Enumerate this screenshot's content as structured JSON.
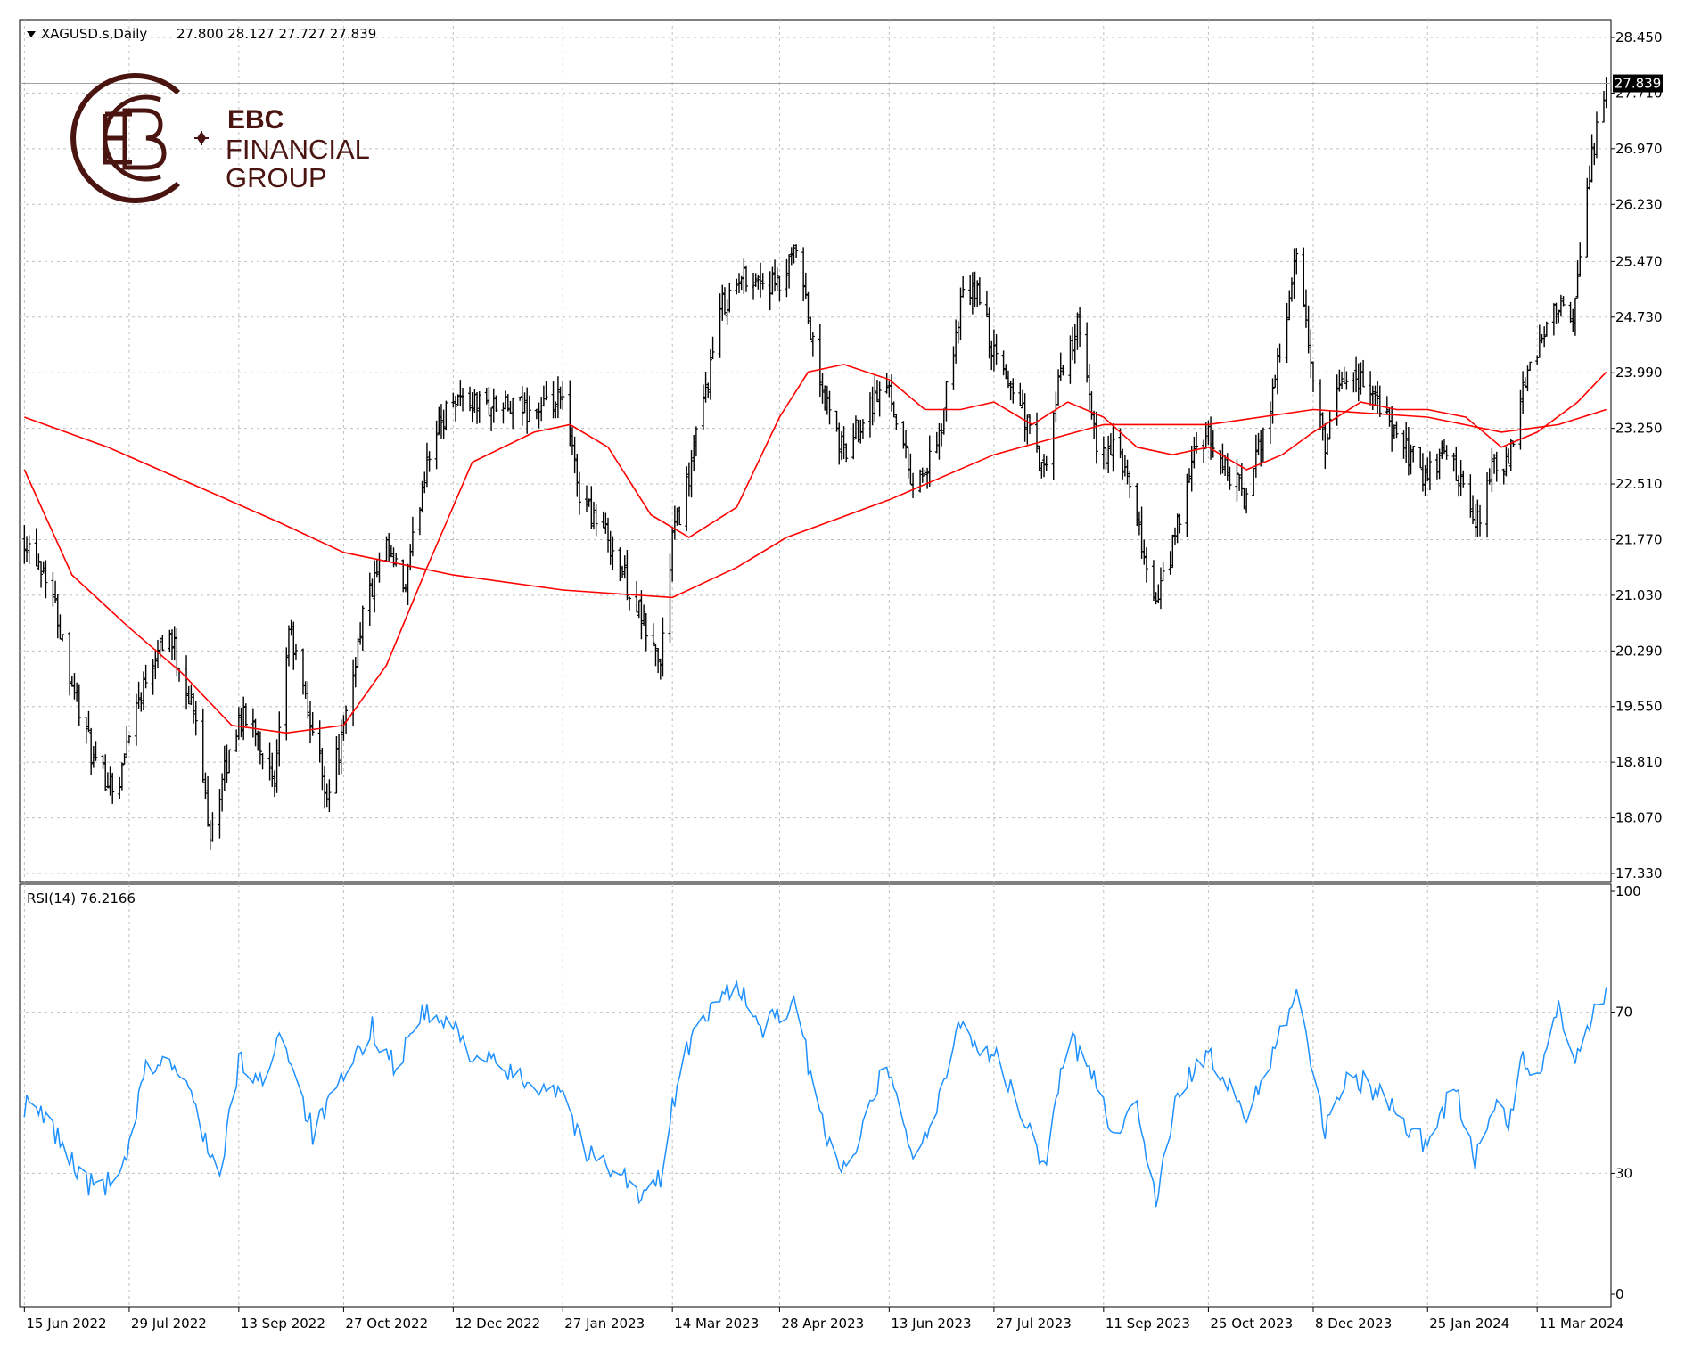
{
  "header": {
    "symbol_label": "XAGUSD.s,Daily",
    "ohlc": "27.800 28.127 27.727 27.839"
  },
  "logo": {
    "line1": "EBC",
    "line2": "FINANCIAL",
    "line3": "GROUP"
  },
  "rsi": {
    "label": "RSI(14) 76.2166"
  },
  "colors": {
    "price_bars": "#000000",
    "moving_averages": "#ff0000",
    "rsi_line": "#1e90ff",
    "grid": "#c0c0c0",
    "logo": "#4a1410",
    "background": "#ffffff"
  },
  "chart_data": [
    {
      "type": "ohlc",
      "symbol": "XAGUSD.s",
      "timeframe": "Daily",
      "last_price": 27.839,
      "last_price_label": "27.839",
      "ylim": [
        17.33,
        28.45
      ],
      "y_ticks": [
        "28.450",
        "27.710",
        "26.970",
        "26.230",
        "25.470",
        "24.730",
        "23.990",
        "23.250",
        "22.510",
        "21.770",
        "21.030",
        "20.290",
        "19.550",
        "18.810",
        "18.070",
        "17.330"
      ],
      "x_ticks": [
        "15 Jun 2022",
        "29 Jul 2022",
        "13 Sep 2022",
        "27 Oct 2022",
        "12 Dec 2022",
        "27 Jan 2023",
        "14 Mar 2023",
        "28 Apr 2023",
        "13 Jun 2023",
        "27 Jul 2023",
        "11 Sep 2023",
        "25 Oct 2023",
        "8 Dec 2023",
        "25 Jan 2024",
        "11 Mar 2024"
      ],
      "close_path": [
        {
          "x": "2022-06-15",
          "y": 21.8
        },
        {
          "x": "2022-06-25",
          "y": 21.3
        },
        {
          "x": "2022-07-05",
          "y": 19.9
        },
        {
          "x": "2022-07-15",
          "y": 18.7
        },
        {
          "x": "2022-07-25",
          "y": 18.5
        },
        {
          "x": "2022-07-29",
          "y": 19.3
        },
        {
          "x": "2022-08-10",
          "y": 20.4
        },
        {
          "x": "2022-08-15",
          "y": 20.5
        },
        {
          "x": "2022-08-25",
          "y": 19.5
        },
        {
          "x": "2022-09-01",
          "y": 17.9
        },
        {
          "x": "2022-09-13",
          "y": 19.4
        },
        {
          "x": "2022-09-20",
          "y": 19.3
        },
        {
          "x": "2022-09-28",
          "y": 18.4
        },
        {
          "x": "2022-10-04",
          "y": 20.6
        },
        {
          "x": "2022-10-20",
          "y": 18.4
        },
        {
          "x": "2022-10-27",
          "y": 19.2
        },
        {
          "x": "2022-11-04",
          "y": 20.8
        },
        {
          "x": "2022-11-14",
          "y": 21.6
        },
        {
          "x": "2022-11-22",
          "y": 21.1
        },
        {
          "x": "2022-12-01",
          "y": 22.9
        },
        {
          "x": "2022-12-12",
          "y": 23.7
        },
        {
          "x": "2022-12-20",
          "y": 23.6
        },
        {
          "x": "2023-01-05",
          "y": 23.5
        },
        {
          "x": "2023-01-20",
          "y": 23.5
        },
        {
          "x": "2023-01-27",
          "y": 23.6
        },
        {
          "x": "2023-02-03",
          "y": 22.4
        },
        {
          "x": "2023-02-15",
          "y": 21.8
        },
        {
          "x": "2023-02-28",
          "y": 20.8
        },
        {
          "x": "2023-03-09",
          "y": 20.1
        },
        {
          "x": "2023-03-14",
          "y": 21.8
        },
        {
          "x": "2023-03-21",
          "y": 22.6
        },
        {
          "x": "2023-04-04",
          "y": 24.9
        },
        {
          "x": "2023-04-14",
          "y": 25.3
        },
        {
          "x": "2023-04-28",
          "y": 25.1
        },
        {
          "x": "2023-05-05",
          "y": 25.6
        },
        {
          "x": "2023-05-15",
          "y": 23.8
        },
        {
          "x": "2023-05-25",
          "y": 22.9
        },
        {
          "x": "2023-06-05",
          "y": 23.6
        },
        {
          "x": "2023-06-13",
          "y": 23.8
        },
        {
          "x": "2023-06-23",
          "y": 22.5
        },
        {
          "x": "2023-07-03",
          "y": 22.9
        },
        {
          "x": "2023-07-13",
          "y": 24.9
        },
        {
          "x": "2023-07-20",
          "y": 25.1
        },
        {
          "x": "2023-07-27",
          "y": 24.2
        },
        {
          "x": "2023-08-07",
          "y": 23.6
        },
        {
          "x": "2023-08-17",
          "y": 22.6
        },
        {
          "x": "2023-08-24",
          "y": 24.0
        },
        {
          "x": "2023-08-31",
          "y": 24.6
        },
        {
          "x": "2023-09-08",
          "y": 23.0
        },
        {
          "x": "2023-09-18",
          "y": 22.9
        },
        {
          "x": "2023-10-03",
          "y": 20.9
        },
        {
          "x": "2023-10-11",
          "y": 21.8
        },
        {
          "x": "2023-10-20",
          "y": 23.0
        },
        {
          "x": "2023-10-25",
          "y": 23.1
        },
        {
          "x": "2023-11-10",
          "y": 22.3
        },
        {
          "x": "2023-11-20",
          "y": 23.6
        },
        {
          "x": "2023-12-01",
          "y": 25.5
        },
        {
          "x": "2023-12-08",
          "y": 23.9
        },
        {
          "x": "2023-12-13",
          "y": 22.9
        },
        {
          "x": "2023-12-20",
          "y": 24.0
        },
        {
          "x": "2024-01-02",
          "y": 23.8
        },
        {
          "x": "2024-01-10",
          "y": 23.2
        },
        {
          "x": "2024-01-25",
          "y": 22.6
        },
        {
          "x": "2024-02-02",
          "y": 23.0
        },
        {
          "x": "2024-02-14",
          "y": 21.9
        },
        {
          "x": "2024-02-22",
          "y": 22.8
        },
        {
          "x": "2024-02-28",
          "y": 22.7
        },
        {
          "x": "2024-03-05",
          "y": 23.8
        },
        {
          "x": "2024-03-11",
          "y": 24.2
        },
        {
          "x": "2024-03-18",
          "y": 25.0
        },
        {
          "x": "2024-03-26",
          "y": 24.6
        },
        {
          "x": "2024-04-01",
          "y": 26.4
        },
        {
          "x": "2024-04-05",
          "y": 27.3
        },
        {
          "x": "2024-04-09",
          "y": 27.839
        }
      ],
      "series": [
        {
          "points": [
            {
              "x": "2022-06-15",
              "y": 22.7
            },
            {
              "x": "2022-07-05",
              "y": 21.3
            },
            {
              "x": "2022-07-29",
              "y": 20.6
            },
            {
              "x": "2022-08-20",
              "y": 20.0
            },
            {
              "x": "2022-09-10",
              "y": 19.3
            },
            {
              "x": "2022-10-03",
              "y": 19.2
            },
            {
              "x": "2022-10-27",
              "y": 19.3
            },
            {
              "x": "2022-11-14",
              "y": 20.1
            },
            {
              "x": "2022-12-01",
              "y": 21.4
            },
            {
              "x": "2022-12-20",
              "y": 22.8
            },
            {
              "x": "2023-01-15",
              "y": 23.2
            },
            {
              "x": "2023-01-30",
              "y": 23.3
            },
            {
              "x": "2023-02-15",
              "y": 23.0
            },
            {
              "x": "2023-03-05",
              "y": 22.1
            },
            {
              "x": "2023-03-21",
              "y": 21.8
            },
            {
              "x": "2023-04-10",
              "y": 22.2
            },
            {
              "x": "2023-04-28",
              "y": 23.4
            },
            {
              "x": "2023-05-10",
              "y": 24.0
            },
            {
              "x": "2023-05-25",
              "y": 24.1
            },
            {
              "x": "2023-06-13",
              "y": 23.9
            },
            {
              "x": "2023-06-28",
              "y": 23.5
            },
            {
              "x": "2023-07-13",
              "y": 23.5
            },
            {
              "x": "2023-07-27",
              "y": 23.6
            },
            {
              "x": "2023-08-12",
              "y": 23.3
            },
            {
              "x": "2023-08-27",
              "y": 23.6
            },
            {
              "x": "2023-09-11",
              "y": 23.4
            },
            {
              "x": "2023-09-25",
              "y": 23.0
            },
            {
              "x": "2023-10-10",
              "y": 22.9
            },
            {
              "x": "2023-10-25",
              "y": 23.0
            },
            {
              "x": "2023-11-10",
              "y": 22.7
            },
            {
              "x": "2023-11-25",
              "y": 22.9
            },
            {
              "x": "2023-12-08",
              "y": 23.2
            },
            {
              "x": "2023-12-28",
              "y": 23.6
            },
            {
              "x": "2024-01-12",
              "y": 23.5
            },
            {
              "x": "2024-01-25",
              "y": 23.5
            },
            {
              "x": "2024-02-10",
              "y": 23.4
            },
            {
              "x": "2024-02-25",
              "y": 23.0
            },
            {
              "x": "2024-03-11",
              "y": 23.2
            },
            {
              "x": "2024-03-28",
              "y": 23.6
            },
            {
              "x": "2024-04-09",
              "y": 24.0
            }
          ]
        },
        {
          "points": [
            {
              "x": "2022-06-15",
              "y": 23.4
            },
            {
              "x": "2022-07-20",
              "y": 23.0
            },
            {
              "x": "2022-08-25",
              "y": 22.5
            },
            {
              "x": "2022-09-30",
              "y": 22.0
            },
            {
              "x": "2022-10-27",
              "y": 21.6
            },
            {
              "x": "2022-12-12",
              "y": 21.3
            },
            {
              "x": "2023-01-27",
              "y": 21.1
            },
            {
              "x": "2023-03-14",
              "y": 21.0
            },
            {
              "x": "2023-04-10",
              "y": 21.4
            },
            {
              "x": "2023-05-01",
              "y": 21.8
            },
            {
              "x": "2023-06-13",
              "y": 22.3
            },
            {
              "x": "2023-07-27",
              "y": 22.9
            },
            {
              "x": "2023-09-11",
              "y": 23.3
            },
            {
              "x": "2023-10-25",
              "y": 23.3
            },
            {
              "x": "2023-12-08",
              "y": 23.5
            },
            {
              "x": "2024-01-25",
              "y": 23.4
            },
            {
              "x": "2024-02-25",
              "y": 23.2
            },
            {
              "x": "2024-03-20",
              "y": 23.3
            },
            {
              "x": "2024-04-09",
              "y": 23.5
            }
          ]
        }
      ]
    },
    {
      "type": "line",
      "title": "RSI(14) 76.2166",
      "ylim": [
        0,
        100
      ],
      "y_ticks": [
        "100",
        "70",
        "30",
        "0"
      ],
      "series": [
        {
          "points": [
            {
              "x": "2022-06-15",
              "y": 47
            },
            {
              "x": "2022-06-25",
              "y": 43
            },
            {
              "x": "2022-07-05",
              "y": 33
            },
            {
              "x": "2022-07-12",
              "y": 27
            },
            {
              "x": "2022-07-25",
              "y": 28
            },
            {
              "x": "2022-07-29",
              "y": 36
            },
            {
              "x": "2022-08-05",
              "y": 56
            },
            {
              "x": "2022-08-15",
              "y": 58
            },
            {
              "x": "2022-08-25",
              "y": 48
            },
            {
              "x": "2022-09-05",
              "y": 28
            },
            {
              "x": "2022-09-13",
              "y": 58
            },
            {
              "x": "2022-09-22",
              "y": 52
            },
            {
              "x": "2022-10-01",
              "y": 66
            },
            {
              "x": "2022-10-14",
              "y": 40
            },
            {
              "x": "2022-10-27",
              "y": 53
            },
            {
              "x": "2022-11-08",
              "y": 66
            },
            {
              "x": "2022-11-18",
              "y": 56
            },
            {
              "x": "2022-11-28",
              "y": 70
            },
            {
              "x": "2022-12-12",
              "y": 66
            },
            {
              "x": "2022-12-20",
              "y": 60
            },
            {
              "x": "2023-01-10",
              "y": 53
            },
            {
              "x": "2023-01-27",
              "y": 51
            },
            {
              "x": "2023-02-05",
              "y": 35
            },
            {
              "x": "2023-02-20",
              "y": 31
            },
            {
              "x": "2023-03-01",
              "y": 23
            },
            {
              "x": "2023-03-10",
              "y": 30
            },
            {
              "x": "2023-03-14",
              "y": 47
            },
            {
              "x": "2023-03-21",
              "y": 62
            },
            {
              "x": "2023-04-04",
              "y": 74
            },
            {
              "x": "2023-04-10",
              "y": 78
            },
            {
              "x": "2023-04-20",
              "y": 65
            },
            {
              "x": "2023-04-28",
              "y": 70
            },
            {
              "x": "2023-05-05",
              "y": 71
            },
            {
              "x": "2023-05-15",
              "y": 44
            },
            {
              "x": "2023-05-26",
              "y": 29
            },
            {
              "x": "2023-06-05",
              "y": 50
            },
            {
              "x": "2023-06-13",
              "y": 56
            },
            {
              "x": "2023-06-23",
              "y": 34
            },
            {
              "x": "2023-07-03",
              "y": 45
            },
            {
              "x": "2023-07-13",
              "y": 69
            },
            {
              "x": "2023-07-20",
              "y": 61
            },
            {
              "x": "2023-07-27",
              "y": 60
            },
            {
              "x": "2023-08-07",
              "y": 45
            },
            {
              "x": "2023-08-17",
              "y": 32
            },
            {
              "x": "2023-08-27",
              "y": 63
            },
            {
              "x": "2023-09-05",
              "y": 58
            },
            {
              "x": "2023-09-15",
              "y": 40
            },
            {
              "x": "2023-09-25",
              "y": 47
            },
            {
              "x": "2023-10-03",
              "y": 24
            },
            {
              "x": "2023-10-11",
              "y": 46
            },
            {
              "x": "2023-10-20",
              "y": 58
            },
            {
              "x": "2023-10-25",
              "y": 59
            },
            {
              "x": "2023-11-10",
              "y": 44
            },
            {
              "x": "2023-11-22",
              "y": 62
            },
            {
              "x": "2023-12-01",
              "y": 76
            },
            {
              "x": "2023-12-08",
              "y": 56
            },
            {
              "x": "2023-12-13",
              "y": 40
            },
            {
              "x": "2023-12-22",
              "y": 55
            },
            {
              "x": "2024-01-05",
              "y": 50
            },
            {
              "x": "2024-01-15",
              "y": 43
            },
            {
              "x": "2024-01-25",
              "y": 37
            },
            {
              "x": "2024-02-05",
              "y": 52
            },
            {
              "x": "2024-02-14",
              "y": 33
            },
            {
              "x": "2024-02-22",
              "y": 47
            },
            {
              "x": "2024-02-28",
              "y": 43
            },
            {
              "x": "2024-03-05",
              "y": 58
            },
            {
              "x": "2024-03-11",
              "y": 53
            },
            {
              "x": "2024-03-20",
              "y": 70
            },
            {
              "x": "2024-03-28",
              "y": 58
            },
            {
              "x": "2024-04-02",
              "y": 68
            },
            {
              "x": "2024-04-09",
              "y": 76.2166
            }
          ]
        }
      ]
    }
  ]
}
